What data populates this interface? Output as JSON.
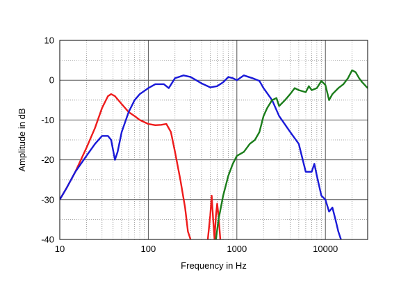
{
  "chart_data": {
    "type": "line",
    "xlabel": "Frequency in Hz",
    "ylabel": "Amplitude in dB",
    "xscale": "log",
    "xlim": [
      10,
      30000
    ],
    "ylim": [
      -40,
      10
    ],
    "grid": true,
    "x_ticks": [
      {
        "value": 10,
        "label": "10"
      },
      {
        "value": 100,
        "label": "100"
      },
      {
        "value": 1000,
        "label": "1000"
      },
      {
        "value": 10000,
        "label": "10000"
      }
    ],
    "y_ticks": [
      {
        "value": 10,
        "label": "10"
      },
      {
        "value": 0,
        "label": "0"
      },
      {
        "value": -10,
        "label": "-10"
      },
      {
        "value": -20,
        "label": "-20"
      },
      {
        "value": -30,
        "label": "-30"
      },
      {
        "value": -40,
        "label": "-40"
      }
    ],
    "series": [
      {
        "color": "#ee1c1c",
        "points": [
          [
            10,
            -30
          ],
          [
            12,
            -27
          ],
          [
            15,
            -23
          ],
          [
            20,
            -17
          ],
          [
            25,
            -12
          ],
          [
            30,
            -7
          ],
          [
            35,
            -4
          ],
          [
            38,
            -3.5
          ],
          [
            42,
            -4
          ],
          [
            50,
            -6
          ],
          [
            60,
            -8
          ],
          [
            70,
            -9
          ],
          [
            80,
            -10
          ],
          [
            100,
            -11
          ],
          [
            120,
            -11.3
          ],
          [
            140,
            -11.2
          ],
          [
            160,
            -11
          ],
          [
            180,
            -13
          ],
          [
            200,
            -18
          ],
          [
            230,
            -25
          ],
          [
            260,
            -32
          ],
          [
            280,
            -38
          ],
          [
            300,
            -40
          ]
        ]
      },
      {
        "color": "#ee1c1c",
        "points": [
          [
            470,
            -40
          ],
          [
            500,
            -34
          ],
          [
            520,
            -29
          ],
          [
            540,
            -35
          ],
          [
            560,
            -40
          ],
          [
            580,
            -34
          ],
          [
            600,
            -31
          ],
          [
            620,
            -34
          ],
          [
            650,
            -40
          ]
        ]
      },
      {
        "color": "#1a1ad8",
        "points": [
          [
            10,
            -30
          ],
          [
            12,
            -27
          ],
          [
            15,
            -23
          ],
          [
            20,
            -19
          ],
          [
            25,
            -16
          ],
          [
            30,
            -14
          ],
          [
            35,
            -14
          ],
          [
            38,
            -15
          ],
          [
            42,
            -20
          ],
          [
            45,
            -18
          ],
          [
            50,
            -13
          ],
          [
            60,
            -8
          ],
          [
            70,
            -5
          ],
          [
            80,
            -3.5
          ],
          [
            100,
            -2
          ],
          [
            120,
            -1
          ],
          [
            150,
            -1
          ],
          [
            170,
            -2
          ],
          [
            200,
            0.5
          ],
          [
            250,
            1.2
          ],
          [
            300,
            0.8
          ],
          [
            400,
            -0.8
          ],
          [
            500,
            -1.8
          ],
          [
            600,
            -1.5
          ],
          [
            700,
            -0.5
          ],
          [
            800,
            0.8
          ],
          [
            900,
            0.5
          ],
          [
            1000,
            0
          ],
          [
            1200,
            1.2
          ],
          [
            1500,
            0.5
          ],
          [
            1800,
            -0.2
          ],
          [
            2000,
            -2
          ],
          [
            2500,
            -5
          ],
          [
            3000,
            -9
          ],
          [
            4000,
            -13
          ],
          [
            5000,
            -16
          ],
          [
            6000,
            -23
          ],
          [
            7000,
            -23
          ],
          [
            7500,
            -21
          ],
          [
            8000,
            -24
          ],
          [
            9000,
            -29
          ],
          [
            10000,
            -30
          ],
          [
            11000,
            -33
          ],
          [
            12000,
            -32
          ],
          [
            13000,
            -35
          ],
          [
            14000,
            -38
          ],
          [
            15000,
            -40
          ]
        ]
      },
      {
        "color": "#1b7d1b",
        "points": [
          [
            580,
            -40
          ],
          [
            620,
            -35
          ],
          [
            700,
            -29
          ],
          [
            800,
            -24
          ],
          [
            900,
            -21
          ],
          [
            1000,
            -19
          ],
          [
            1200,
            -18
          ],
          [
            1400,
            -16
          ],
          [
            1600,
            -15
          ],
          [
            1800,
            -13
          ],
          [
            2000,
            -9
          ],
          [
            2200,
            -7
          ],
          [
            2500,
            -5
          ],
          [
            2800,
            -4.5
          ],
          [
            3000,
            -6.5
          ],
          [
            3500,
            -5
          ],
          [
            4000,
            -3.5
          ],
          [
            4500,
            -2
          ],
          [
            5000,
            -2.5
          ],
          [
            6000,
            -3
          ],
          [
            6500,
            -1.5
          ],
          [
            7000,
            -2.5
          ],
          [
            8000,
            -2
          ],
          [
            9000,
            -0.2
          ],
          [
            10000,
            -1.2
          ],
          [
            11000,
            -5
          ],
          [
            12000,
            -3.5
          ],
          [
            14000,
            -2
          ],
          [
            16000,
            -1
          ],
          [
            18000,
            0.5
          ],
          [
            20000,
            2.5
          ],
          [
            22000,
            2
          ],
          [
            24000,
            0.5
          ],
          [
            26000,
            -0.5
          ],
          [
            30000,
            -2
          ]
        ]
      }
    ]
  }
}
